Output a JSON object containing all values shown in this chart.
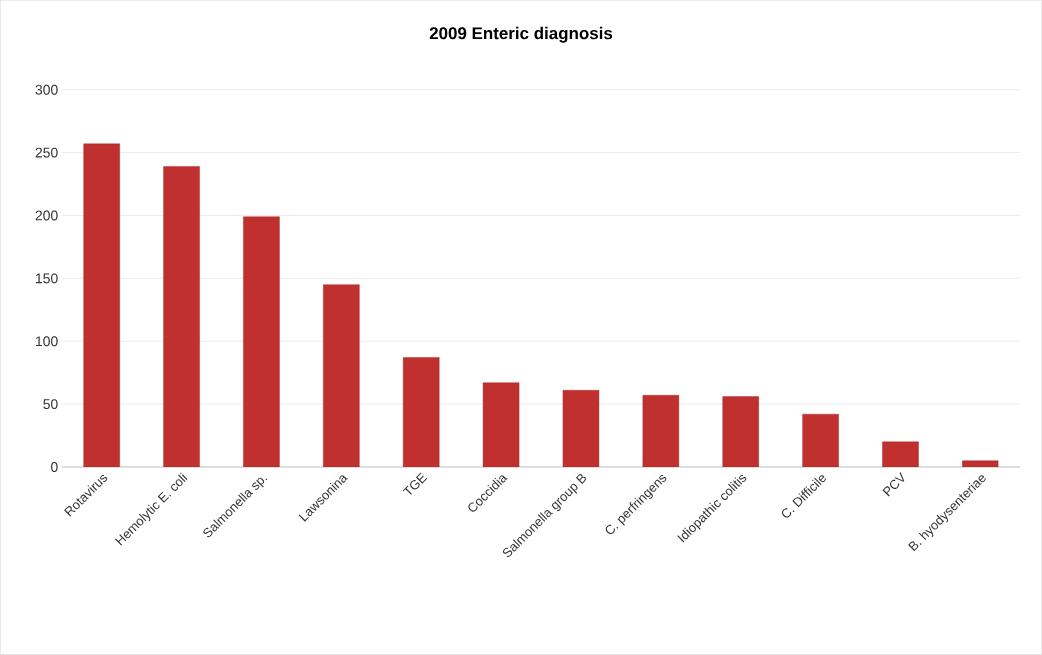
{
  "chart_data": {
    "type": "bar",
    "title": "2009 Enteric diagnosis",
    "categories": [
      "Rotavirus",
      "Hemolytic E. coli",
      "Salmonella sp.",
      "Lawsonina",
      "TGE",
      "Coccidia",
      "Salmonella group B",
      "C. perfringens",
      "Idiopathic colitis",
      "C. Difficile",
      "PCV",
      "B. hyodysenteriae"
    ],
    "values": [
      257,
      239,
      199,
      145,
      87,
      67,
      61,
      57,
      56,
      42,
      20,
      5
    ],
    "color": "#c0302e",
    "ylim": [
      0,
      300
    ],
    "yticks": [
      0,
      50,
      100,
      150,
      200,
      250,
      300
    ],
    "grid": "y"
  }
}
